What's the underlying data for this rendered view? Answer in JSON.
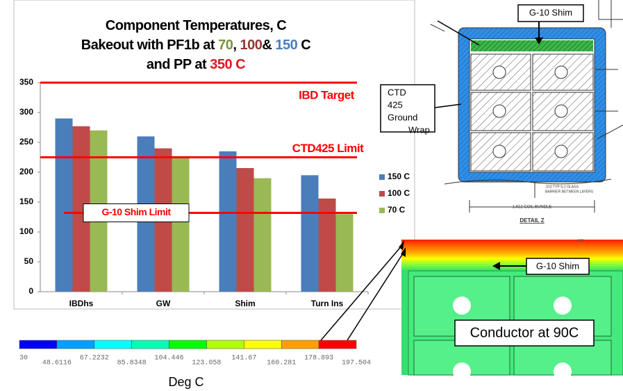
{
  "chart_data": {
    "type": "bar",
    "title_lines": [
      [
        {
          "text": "Component Temperatures, C",
          "color": "#000000"
        }
      ],
      [
        {
          "text": "Bakeout with PF1b at ",
          "color": "#000000"
        },
        {
          "text": "70",
          "color": "#77933c"
        },
        {
          "text": ", ",
          "color": "#000000"
        },
        {
          "text": "100",
          "color": "#953735"
        },
        {
          "text": "& ",
          "color": "#000000"
        },
        {
          "text": "150",
          "color": "#4a7ebb"
        },
        {
          "text": " C",
          "color": "#000000"
        }
      ],
      [
        {
          "text": "and PP at ",
          "color": "#000000"
        },
        {
          "text": "350 C",
          "color": "#e0191e"
        }
      ]
    ],
    "categories": [
      "IBDhs",
      "GW",
      "Shim",
      "Turn Ins"
    ],
    "series": [
      {
        "name": "150 C",
        "color": "#4a7ebb",
        "values": [
          290,
          260,
          235,
          195
        ]
      },
      {
        "name": "100 C",
        "color": "#be4b48",
        "values": [
          277,
          240,
          207,
          156
        ]
      },
      {
        "name": "70 C",
        "color": "#98b954",
        "values": [
          270,
          227,
          190,
          130
        ]
      }
    ],
    "ylim": [
      0,
      350
    ],
    "yticks": [
      0,
      50,
      100,
      150,
      200,
      250,
      300,
      350
    ],
    "reference_lines": [
      {
        "label": "IBD Target",
        "value": 350,
        "color": "#ff0000"
      },
      {
        "label": "CTD425 Limit",
        "value": 225,
        "color": "#ff0000"
      },
      {
        "label": "G-10 Shim Limit",
        "value": 132,
        "color": "#ff0000"
      }
    ],
    "legend": "right"
  },
  "colorbar": {
    "label": "Deg C",
    "ticks": [
      30,
      48.6116,
      67.2232,
      85.8348,
      104.446,
      123.058,
      141.67,
      160.281,
      178.893,
      197.504
    ],
    "colors": [
      "#0000ff",
      "#00a0ff",
      "#00ffff",
      "#00ffb2",
      "#00ff00",
      "#b2ff00",
      "#ffff00",
      "#ffa000",
      "#ff0000"
    ]
  },
  "diagram": {
    "shim_label": "G-10 Shim",
    "wrap_label": [
      "CTD",
      "425",
      "Ground",
      "Wrap"
    ],
    "barrier_note": [
      ".010 TYP S-2 GLASS",
      "BARRIER BETWEEN LAYERS"
    ],
    "bundle_label": "1.612 COIL BUNDLE",
    "detail_label": "DETAIL Z"
  },
  "thermal": {
    "shim_label": "G-10 Shim",
    "conductor_label": "Conductor at 90C",
    "corner_label": "MX"
  }
}
